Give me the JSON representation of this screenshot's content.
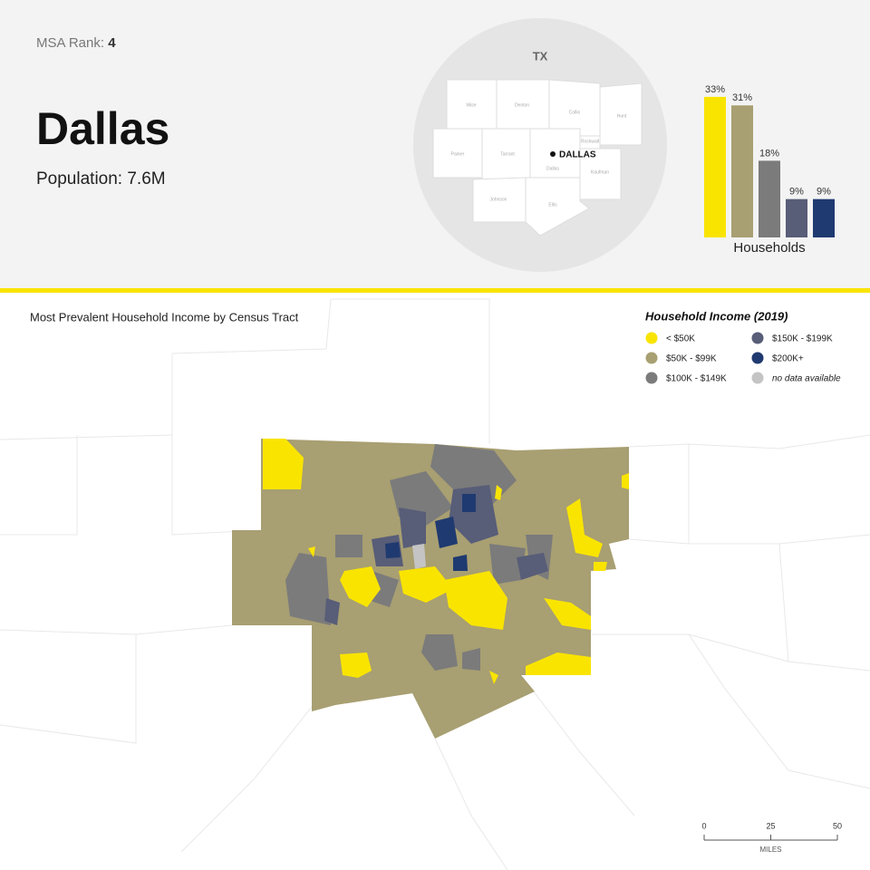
{
  "header": {
    "rank_label": "MSA Rank:",
    "rank": "4",
    "title": "Dallas",
    "population": "Population: 7.6M"
  },
  "locator": {
    "state": "TX",
    "city": "DALLAS",
    "counties": [
      "Wise",
      "Denton",
      "Collin",
      "Hunt",
      "Parker",
      "Tarrant",
      "Rockwall",
      "Dallas",
      "Kaufman",
      "Johnson",
      "Ellis"
    ]
  },
  "chart_data": {
    "type": "bar",
    "values": [
      33,
      31,
      18,
      9,
      9
    ],
    "value_labels": [
      "33%",
      "31%",
      "18%",
      "9%",
      "9%"
    ],
    "colors": [
      "#f9e400",
      "#a89f72",
      "#7b7b7b",
      "#585d78",
      "#1f3a70"
    ],
    "xlabel": "Households"
  },
  "map": {
    "title": "Most Prevalent Household Income by Census Tract"
  },
  "legend": {
    "title": "Household Income (2019)",
    "items": [
      {
        "label": "< $50K",
        "color": "#f9e400"
      },
      {
        "label": "$50K - $99K",
        "color": "#a89f72"
      },
      {
        "label": "$100K - $149K",
        "color": "#7b7b7b"
      },
      {
        "label": "$150K - $199K",
        "color": "#585d78"
      },
      {
        "label": "$200K+",
        "color": "#1f3a70"
      },
      {
        "label": "no data available",
        "color": "#c4c4c4"
      }
    ]
  },
  "scale": {
    "ticks": [
      0,
      25,
      50
    ],
    "unit": "MILES"
  }
}
